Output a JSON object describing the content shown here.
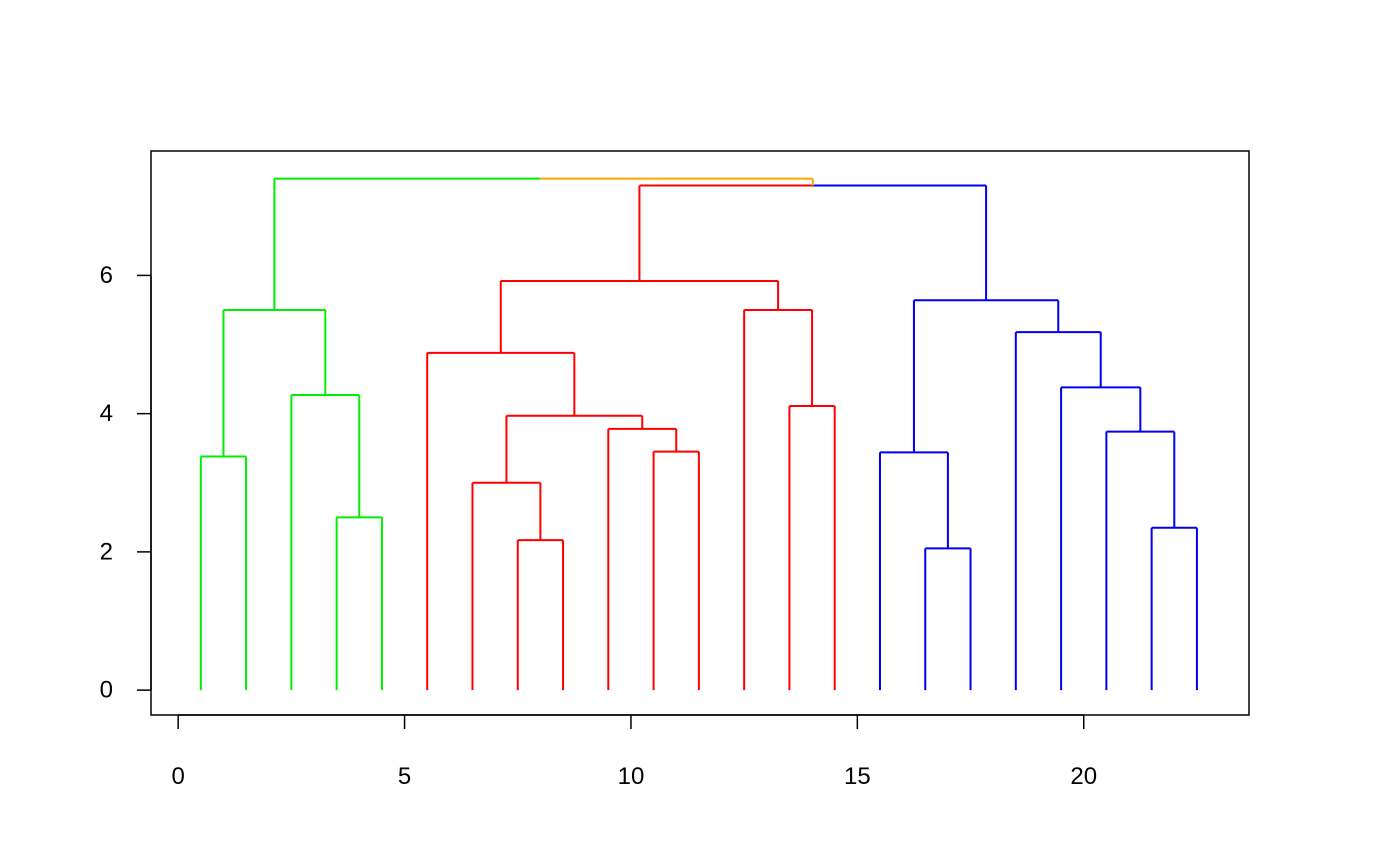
{
  "chart_data": {
    "type": "dendrogram",
    "title": "",
    "xlabel": "",
    "ylabel": "",
    "xlim": [
      -0.6,
      23.65
    ],
    "ylim": [
      -0.36,
      7.8
    ],
    "x_ticks": [
      0,
      5,
      10,
      15,
      20
    ],
    "x_tick_labels": [
      "0",
      "5",
      "10",
      "15",
      "20"
    ],
    "y_ticks": [
      0,
      2,
      4,
      6
    ],
    "y_tick_labels": [
      "0",
      "2",
      "4",
      "6"
    ],
    "box": true,
    "grid": false,
    "colors": {
      "green": "#00ee00",
      "red": "#ff0000",
      "blue": "#0000ee",
      "orange": "#ffa500"
    },
    "leaves": {
      "x": [
        0.5,
        1.5,
        2.5,
        3.5,
        4.5,
        5.5,
        6.5,
        7.5,
        8.5,
        9.5,
        10.5,
        11.5,
        12.5,
        13.5,
        14.5,
        15.5,
        16.5,
        17.5,
        18.5,
        19.5,
        20.5,
        21.5,
        22.5
      ],
      "height": 0
    },
    "merges": [
      {
        "left_x": 0.5,
        "right_x": 1.5,
        "left_h": 0,
        "right_h": 0,
        "height": 3.38,
        "color": "green"
      },
      {
        "left_x": 3.5,
        "right_x": 4.5,
        "left_h": 0,
        "right_h": 0,
        "height": 2.5,
        "color": "green"
      },
      {
        "left_x": 2.5,
        "right_x": 4.0,
        "left_h": 0,
        "right_h": 2.5,
        "height": 4.27,
        "color": "green"
      },
      {
        "left_x": 1.0,
        "right_x": 3.25,
        "left_h": 3.38,
        "right_h": 4.27,
        "height": 5.5,
        "color": "green"
      },
      {
        "left_x": 7.5,
        "right_x": 8.5,
        "left_h": 0,
        "right_h": 0,
        "height": 2.17,
        "color": "red"
      },
      {
        "left_x": 6.5,
        "right_x": 8.0,
        "left_h": 0,
        "right_h": 2.17,
        "height": 3.0,
        "color": "red"
      },
      {
        "left_x": 10.5,
        "right_x": 11.5,
        "left_h": 0,
        "right_h": 0,
        "height": 3.45,
        "color": "red"
      },
      {
        "left_x": 9.5,
        "right_x": 11.0,
        "left_h": 0,
        "right_h": 3.45,
        "height": 3.78,
        "color": "red"
      },
      {
        "left_x": 7.25,
        "right_x": 10.25,
        "left_h": 3.0,
        "right_h": 3.78,
        "height": 3.97,
        "color": "red"
      },
      {
        "left_x": 5.5,
        "right_x": 8.75,
        "left_h": 0,
        "right_h": 3.97,
        "height": 4.88,
        "color": "red"
      },
      {
        "left_x": 13.5,
        "right_x": 14.5,
        "left_h": 0,
        "right_h": 0,
        "height": 4.11,
        "color": "red"
      },
      {
        "left_x": 12.5,
        "right_x": 14.0,
        "left_h": 0,
        "right_h": 4.11,
        "height": 5.5,
        "color": "red"
      },
      {
        "left_x": 7.125,
        "right_x": 13.25,
        "left_h": 4.88,
        "right_h": 5.5,
        "height": 5.92,
        "color": "red"
      },
      {
        "left_x": 16.5,
        "right_x": 17.5,
        "left_h": 0,
        "right_h": 0,
        "height": 2.05,
        "color": "blue"
      },
      {
        "left_x": 15.5,
        "right_x": 17.0,
        "left_h": 0,
        "right_h": 2.05,
        "height": 3.44,
        "color": "blue"
      },
      {
        "left_x": 21.5,
        "right_x": 22.5,
        "left_h": 0,
        "right_h": 0,
        "height": 2.35,
        "color": "blue"
      },
      {
        "left_x": 20.5,
        "right_x": 22.0,
        "left_h": 0,
        "right_h": 2.35,
        "height": 3.74,
        "color": "blue"
      },
      {
        "left_x": 19.5,
        "right_x": 21.25,
        "left_h": 0,
        "right_h": 3.74,
        "height": 4.38,
        "color": "blue"
      },
      {
        "left_x": 18.5,
        "right_x": 20.375,
        "left_h": 0,
        "right_h": 4.38,
        "height": 5.18,
        "color": "blue"
      },
      {
        "left_x": 16.25,
        "right_x": 19.4375,
        "left_h": 3.44,
        "right_h": 5.18,
        "height": 5.64,
        "color": "blue"
      },
      {
        "left_x": 10.1875,
        "right_x": 17.84375,
        "left_h": 5.92,
        "right_h": 5.64,
        "height": 7.3,
        "color": "red",
        "right_color": "blue",
        "split_x": 14.0
      },
      {
        "left_x": 2.125,
        "right_x": 14.015625,
        "left_h": 5.5,
        "right_h": 7.3,
        "height": 7.4,
        "color": "green",
        "right_color": "orange",
        "split_x": 8.0
      }
    ]
  }
}
